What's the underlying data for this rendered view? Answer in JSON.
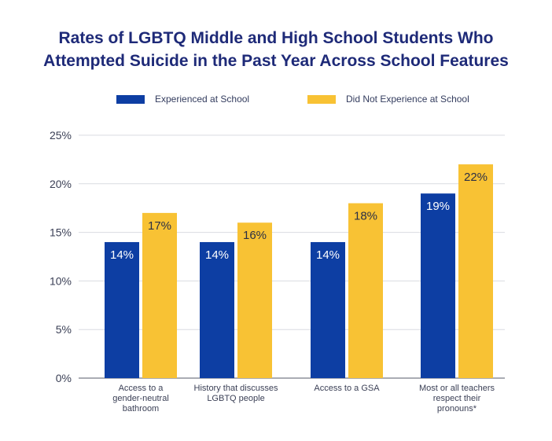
{
  "chart_data": {
    "type": "bar",
    "title_lines": [
      "Rates of LGBTQ Middle and High School Students Who",
      "Attempted Suicide in the Past Year Across School Features"
    ],
    "categories": [
      [
        "Access to a",
        "gender-neutral",
        "bathroom"
      ],
      [
        "History that discusses",
        "LGBTQ people"
      ],
      [
        "Access to a GSA"
      ],
      [
        "Most or all teachers",
        "respect their",
        "pronouns*"
      ]
    ],
    "series": [
      {
        "name": "Experienced at School",
        "color": "#0d3ea3",
        "label_color": "#ffffff",
        "values": [
          14,
          14,
          14,
          19
        ],
        "labels": [
          "14%",
          "14%",
          "14%",
          "19%"
        ]
      },
      {
        "name": "Did Not Experience at School",
        "color": "#f8c234",
        "label_color": "#2b2f45",
        "values": [
          17,
          16,
          18,
          22
        ],
        "labels": [
          "17%",
          "16%",
          "18%",
          "22%"
        ]
      }
    ],
    "ylim": [
      0,
      25
    ],
    "yticks": [
      0,
      5,
      10,
      15,
      20,
      25
    ],
    "ytick_labels": [
      "0%",
      "5%",
      "10%",
      "15%",
      "20%",
      "25%"
    ],
    "grid": true,
    "legend_position": "top"
  }
}
